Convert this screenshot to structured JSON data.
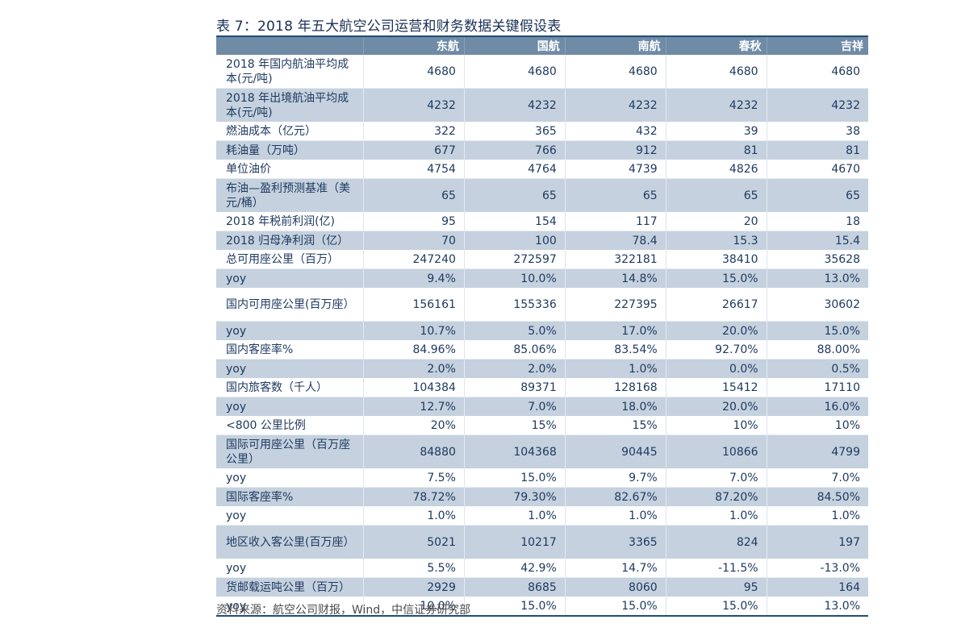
{
  "title": "表 7：2018 年五大航空公司运营和财务数据关键假设表",
  "table": {
    "columns": [
      "",
      "东航",
      "国航",
      "南航",
      "春秋",
      "吉祥"
    ],
    "rows": [
      {
        "label": "2018 年国内航油平均成本(元/吨)",
        "values": [
          "4680",
          "4680",
          "4680",
          "4680",
          "4680"
        ],
        "double": true,
        "shaded": false
      },
      {
        "label": "2018 年出境航油平均成本(元/吨)",
        "values": [
          "4232",
          "4232",
          "4232",
          "4232",
          "4232"
        ],
        "double": true,
        "shaded": true
      },
      {
        "label": "燃油成本（亿元）",
        "values": [
          "322",
          "365",
          "432",
          "39",
          "38"
        ],
        "double": false,
        "shaded": false
      },
      {
        "label": "耗油量（万吨）",
        "values": [
          "677",
          "766",
          "912",
          "81",
          "81"
        ],
        "double": false,
        "shaded": true
      },
      {
        "label": "单位油价",
        "values": [
          "4754",
          "4764",
          "4739",
          "4826",
          "4670"
        ],
        "double": false,
        "shaded": false
      },
      {
        "label": "布油—盈利预测基准（美元/桶）",
        "values": [
          "65",
          "65",
          "65",
          "65",
          "65"
        ],
        "double": true,
        "shaded": true
      },
      {
        "label": "2018 年税前利润(亿)",
        "values": [
          "95",
          "154",
          "117",
          "20",
          "18"
        ],
        "double": false,
        "shaded": false
      },
      {
        "label": "2018 归母净利润（亿）",
        "values": [
          "70",
          "100",
          "78.4",
          "15.3",
          "15.4"
        ],
        "double": false,
        "shaded": true
      },
      {
        "label": "总可用座公里（百万）",
        "values": [
          "247240",
          "272597",
          "322181",
          "38410",
          "35628"
        ],
        "double": false,
        "shaded": false
      },
      {
        "label": "yoy",
        "values": [
          "9.4%",
          "10.0%",
          "14.8%",
          "15.0%",
          "13.0%"
        ],
        "double": false,
        "shaded": true
      },
      {
        "label": "国内可用座公里(百万座）",
        "values": [
          "156161",
          "155336",
          "227395",
          "26617",
          "30602"
        ],
        "double": true,
        "shaded": false
      },
      {
        "label": "yoy",
        "values": [
          "10.7%",
          "5.0%",
          "17.0%",
          "20.0%",
          "15.0%"
        ],
        "double": false,
        "shaded": true
      },
      {
        "label": "国内客座率%",
        "values": [
          "84.96%",
          "85.06%",
          "83.54%",
          "92.70%",
          "88.00%"
        ],
        "double": false,
        "shaded": false
      },
      {
        "label": "yoy",
        "values": [
          "2.0%",
          "2.0%",
          "1.0%",
          "0.0%",
          "0.5%"
        ],
        "double": false,
        "shaded": true
      },
      {
        "label": "国内旅客数（千人）",
        "values": [
          "104384",
          "89371",
          "128168",
          "15412",
          "17110"
        ],
        "double": false,
        "shaded": false
      },
      {
        "label": "yoy",
        "values": [
          "12.7%",
          "7.0%",
          "18.0%",
          "20.0%",
          "16.0%"
        ],
        "double": false,
        "shaded": true
      },
      {
        "label": "<800 公里比例",
        "values": [
          "20%",
          "15%",
          "15%",
          "10%",
          "10%"
        ],
        "double": false,
        "shaded": false
      },
      {
        "label": "国际可用座公里（百万座公里）",
        "values": [
          "84880",
          "104368",
          "90445",
          "10866",
          "4799"
        ],
        "double": true,
        "shaded": true
      },
      {
        "label": "yoy",
        "values": [
          "7.5%",
          "15.0%",
          "9.7%",
          "7.0%",
          "7.0%"
        ],
        "double": false,
        "shaded": false
      },
      {
        "label": "国际客座率%",
        "values": [
          "78.72%",
          "79.30%",
          "82.67%",
          "87.20%",
          "84.50%"
        ],
        "double": false,
        "shaded": true
      },
      {
        "label": "yoy",
        "values": [
          "1.0%",
          "1.0%",
          "1.0%",
          "1.0%",
          "1.0%"
        ],
        "double": false,
        "shaded": false
      },
      {
        "label": "地区收入客公里(百万座）",
        "values": [
          "5021",
          "10217",
          "3365",
          "824",
          "197"
        ],
        "double": true,
        "shaded": true
      },
      {
        "label": "yoy",
        "values": [
          "5.5%",
          "42.9%",
          "14.7%",
          "-11.5%",
          "-13.0%"
        ],
        "double": false,
        "shaded": false
      },
      {
        "label": "货邮载运吨公里（百万）",
        "values": [
          "2929",
          "8685",
          "8060",
          "95",
          "164"
        ],
        "double": false,
        "shaded": true
      },
      {
        "label": "yoy",
        "values": [
          "10.0%",
          "15.0%",
          "15.0%",
          "15.0%",
          "13.0%"
        ],
        "double": false,
        "shaded": false
      }
    ]
  },
  "source": "资料来源：航空公司财报，Wind，中信证券研究部",
  "colors": {
    "header_bg": "#6f8ba6",
    "shaded_row_bg": "#c5d1de",
    "rule": "#1f4e79",
    "text": "#1f3a60"
  }
}
